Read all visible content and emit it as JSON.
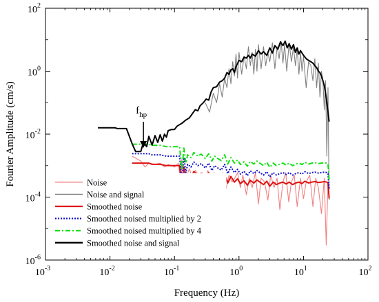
{
  "chart_data": {
    "type": "line",
    "xscale": "log",
    "yscale": "log",
    "xlim": [
      0.001,
      100
    ],
    "ylim": [
      1e-06,
      100
    ],
    "xlabel": "Frequency (Hz)",
    "ylabel": "Fourier Amplitude (cm/s)",
    "xticks": [
      {
        "value": 0.001,
        "base": "10",
        "exp": "-3"
      },
      {
        "value": 0.01,
        "base": "10",
        "exp": "-2"
      },
      {
        "value": 0.1,
        "base": "10",
        "exp": "-1"
      },
      {
        "value": 1,
        "base": "10",
        "exp": "0"
      },
      {
        "value": 10,
        "base": "10",
        "exp": "1"
      },
      {
        "value": 100,
        "base": "10",
        "exp": "2"
      }
    ],
    "yticks": [
      {
        "value": 1e-06,
        "base": "10",
        "exp": "-6"
      },
      {
        "value": 0.0001,
        "base": "10",
        "exp": "-4"
      },
      {
        "value": 0.01,
        "base": "10",
        "exp": "-2"
      },
      {
        "value": 1,
        "base": "10",
        "exp": "0"
      },
      {
        "value": 100,
        "base": "10",
        "exp": "2"
      }
    ],
    "legend_position": "bottom-left",
    "annotation": {
      "base": "f",
      "sub": "hp",
      "x": 0.033,
      "y": 0.0033
    },
    "series": [
      {
        "name": "Noise",
        "color": "#f08080",
        "style": "solid",
        "x": [
          0.022,
          0.03,
          0.035,
          0.04,
          0.05,
          0.06,
          0.07,
          0.08,
          0.09,
          0.1,
          0.115,
          0.125,
          0.13,
          0.14,
          0.15,
          0.17,
          0.19,
          0.21,
          0.24,
          0.27,
          0.3,
          0.33,
          0.37,
          0.41,
          0.45,
          0.5,
          0.56,
          0.62,
          0.7,
          0.78,
          0.86,
          0.95,
          1.05,
          1.15,
          1.3,
          1.45,
          1.6,
          1.8,
          2.0,
          2.2,
          2.5,
          2.8,
          3.1,
          3.5,
          3.9,
          4.3,
          4.8,
          5.3,
          5.9,
          6.5,
          7.2,
          8.0,
          9.0,
          10.0,
          11.0,
          12.5,
          14.0,
          15.5,
          17.0,
          19.0,
          21.0,
          22.5,
          24.0,
          25.0
        ],
        "values": [
          0.002,
          0.0014,
          0.0009,
          0.0012,
          0.0011,
          0.0012,
          0.0009,
          0.0011,
          0.001,
          0.0009,
          0.0012,
          0.0003,
          0.0016,
          0.0006,
          0.0004,
          0.0008,
          0.0004,
          0.0007,
          0.0005,
          0.0006,
          0.0004,
          0.0007,
          0.0003,
          0.0006,
          0.0005,
          0.0004,
          0.0006,
          0.00015,
          0.0005,
          0.0003,
          0.0004,
          0.0006,
          0.0002,
          0.0005,
          0.00012,
          0.0004,
          0.0002,
          0.0006,
          6e-05,
          0.0004,
          0.0003,
          8e-05,
          0.0005,
          0.0002,
          0.0004,
          4e-05,
          0.0003,
          0.0006,
          7e-05,
          0.0003,
          0.0005,
          5e-05,
          0.0004,
          9e-05,
          0.0003,
          0.0005,
          5e-05,
          0.0004,
          0.0002,
          3e-05,
          0.0004,
          3e-06,
          0.0003,
          0.0001
        ]
      },
      {
        "name": "Noise and signal",
        "color": "#808080",
        "style": "solid",
        "x": [
          0.3,
          0.35,
          0.4,
          0.45,
          0.5,
          0.55,
          0.6,
          0.65,
          0.7,
          0.75,
          0.8,
          0.85,
          0.9,
          0.95,
          1.0,
          1.1,
          1.2,
          1.3,
          1.4,
          1.5,
          1.6,
          1.7,
          1.8,
          1.9,
          2.0,
          2.2,
          2.4,
          2.6,
          2.8,
          3.0,
          3.3,
          3.6,
          3.9,
          4.2,
          4.5,
          4.8,
          5.1,
          5.5,
          6.0,
          6.5,
          7.0,
          7.5,
          8.0,
          8.5,
          9.0,
          9.5,
          10.0,
          11.0,
          12.0,
          13.0,
          14.0,
          15.0,
          16.0,
          17.0,
          18.0,
          19.0,
          20.0,
          21.0,
          22.0,
          23.0,
          24.0,
          25.0
        ],
        "values": [
          0.1,
          0.05,
          0.2,
          0.1,
          0.4,
          0.15,
          0.6,
          0.3,
          1.2,
          0.4,
          2.0,
          0.7,
          3.5,
          0.6,
          4.0,
          0.8,
          3.0,
          1.2,
          6.0,
          1.5,
          4.0,
          0.8,
          5.0,
          1.0,
          7.0,
          1.2,
          6.0,
          1.5,
          4.0,
          2.0,
          8.0,
          1.2,
          6.0,
          2.5,
          9.0,
          1.8,
          7.0,
          1.0,
          8.0,
          2.0,
          6.0,
          1.5,
          5.0,
          0.8,
          4.0,
          1.0,
          3.0,
          0.3,
          2.0,
          1.5,
          0.5,
          2.5,
          0.3,
          1.8,
          0.15,
          1.0,
          0.5,
          0.06,
          0.5,
          0.002,
          0.3,
          8e-05
        ]
      },
      {
        "name": "Smoothed noise",
        "color": "#e01010",
        "style": "solid",
        "x": [
          0.022,
          0.04,
          0.045,
          0.06,
          0.075,
          0.1,
          0.12,
          0.13,
          0.14,
          0.15,
          0.16,
          0.18,
          0.2,
          0.23,
          0.26,
          0.3,
          0.34,
          0.38,
          0.42,
          0.47,
          0.53,
          0.6,
          0.67,
          0.75,
          0.85,
          0.95,
          1.05,
          1.2,
          1.35,
          1.5,
          1.7,
          1.9,
          2.1,
          2.4,
          2.7,
          3.0,
          3.4,
          3.8,
          4.3,
          4.8,
          5.4,
          6.0,
          6.8,
          7.6,
          8.5,
          9.5,
          10.5,
          12.0,
          13.5,
          15.0,
          17.0,
          19.0,
          21.0,
          23.0,
          24.0,
          25.0
        ],
        "values": [
          0.0012,
          0.0012,
          0.0011,
          0.0011,
          0.001,
          0.001,
          0.001,
          0.00018,
          0.0009,
          0.0003,
          0.00055,
          0.00045,
          0.00065,
          0.0005,
          0.00058,
          0.00042,
          0.0006,
          0.00035,
          0.0005,
          0.00042,
          0.00036,
          0.00055,
          0.00028,
          0.00045,
          0.0003,
          0.00038,
          0.00027,
          0.00033,
          0.00024,
          0.00034,
          0.00028,
          0.00035,
          0.0003,
          0.00025,
          0.00032,
          0.00022,
          0.0003,
          0.00025,
          0.00028,
          0.0003,
          0.00026,
          0.0003,
          0.00025,
          0.00028,
          0.0003,
          0.00027,
          0.00032,
          0.00028,
          0.0003,
          0.00031,
          0.00029,
          0.0003,
          0.00031,
          0.0003,
          0.00028,
          9e-05
        ]
      },
      {
        "name": "Smoothed noised multiplied by 2",
        "color": "#1010d0",
        "style": "dotted",
        "x": [
          0.022,
          0.04,
          0.045,
          0.06,
          0.075,
          0.1,
          0.12,
          0.13,
          0.14,
          0.15,
          0.16,
          0.18,
          0.2,
          0.23,
          0.26,
          0.3,
          0.34,
          0.38,
          0.42,
          0.47,
          0.53,
          0.6,
          0.67,
          0.75,
          0.85,
          0.95,
          1.05,
          1.2,
          1.35,
          1.5,
          1.7,
          1.9,
          2.1,
          2.4,
          2.7,
          3.0,
          3.4,
          3.8,
          4.3,
          4.8,
          5.4,
          6.0,
          6.8,
          7.6,
          8.5,
          9.5,
          10.5,
          12.0,
          13.5,
          15.0,
          17.0,
          19.0,
          21.0,
          23.0,
          24.0,
          25.0
        ],
        "values": [
          0.0024,
          0.0024,
          0.0022,
          0.0022,
          0.002,
          0.002,
          0.002,
          0.00036,
          0.0018,
          0.0006,
          0.0011,
          0.0009,
          0.0013,
          0.001,
          0.00116,
          0.00084,
          0.0012,
          0.0007,
          0.001,
          0.00084,
          0.00072,
          0.0011,
          0.00056,
          0.0009,
          0.0006,
          0.00076,
          0.00054,
          0.00066,
          0.00048,
          0.00068,
          0.00056,
          0.0007,
          0.0006,
          0.0005,
          0.00064,
          0.00044,
          0.0006,
          0.0005,
          0.00056,
          0.0006,
          0.00052,
          0.0006,
          0.0005,
          0.00056,
          0.0006,
          0.00054,
          0.00064,
          0.00056,
          0.0006,
          0.00062,
          0.00058,
          0.0006,
          0.00062,
          0.0006,
          0.00056,
          0.00018
        ]
      },
      {
        "name": "Smoothed noised multiplied by 4",
        "color": "#10e010",
        "style": "dashdot",
        "x": [
          0.022,
          0.04,
          0.045,
          0.06,
          0.075,
          0.1,
          0.12,
          0.13,
          0.14,
          0.15,
          0.16,
          0.18,
          0.2,
          0.23,
          0.26,
          0.3,
          0.34,
          0.38,
          0.42,
          0.47,
          0.53,
          0.6,
          0.67,
          0.75,
          0.85,
          0.95,
          1.05,
          1.2,
          1.35,
          1.5,
          1.7,
          1.9,
          2.1,
          2.4,
          2.7,
          3.0,
          3.4,
          3.8,
          4.3,
          4.8,
          5.4,
          6.0,
          6.8,
          7.6,
          8.5,
          9.5,
          10.5,
          12.0,
          13.5,
          15.0,
          17.0,
          19.0,
          21.0,
          23.0,
          24.0,
          25.0
        ],
        "values": [
          0.0048,
          0.0048,
          0.0044,
          0.0044,
          0.004,
          0.004,
          0.004,
          0.00072,
          0.0036,
          0.0012,
          0.0022,
          0.0018,
          0.0026,
          0.002,
          0.00232,
          0.00168,
          0.0024,
          0.0014,
          0.002,
          0.00168,
          0.00144,
          0.0022,
          0.00112,
          0.0018,
          0.0012,
          0.00152,
          0.00108,
          0.00132,
          0.00096,
          0.00136,
          0.00112,
          0.0014,
          0.0012,
          0.001,
          0.00128,
          0.00088,
          0.0012,
          0.001,
          0.00112,
          0.0012,
          0.00104,
          0.0012,
          0.001,
          0.00112,
          0.0012,
          0.00108,
          0.00128,
          0.00112,
          0.0012,
          0.00124,
          0.00116,
          0.0012,
          0.00124,
          0.0012,
          0.00112,
          0.00036
        ]
      },
      {
        "name": "Smoothed noise and signal",
        "color": "#000000",
        "style": "solid",
        "x": [
          0.0065,
          0.012,
          0.013,
          0.018,
          0.022,
          0.025,
          0.03,
          0.033,
          0.037,
          0.04,
          0.045,
          0.05,
          0.055,
          0.06,
          0.065,
          0.07,
          0.075,
          0.08,
          0.09,
          0.1,
          0.11,
          0.12,
          0.13,
          0.14,
          0.15,
          0.17,
          0.19,
          0.21,
          0.23,
          0.25,
          0.28,
          0.31,
          0.34,
          0.37,
          0.4,
          0.45,
          0.5,
          0.55,
          0.6,
          0.65,
          0.7,
          0.75,
          0.8,
          0.85,
          0.9,
          1.0,
          1.1,
          1.2,
          1.3,
          1.4,
          1.5,
          1.6,
          1.8,
          2.0,
          2.2,
          2.4,
          2.7,
          3.0,
          3.3,
          3.6,
          4.0,
          4.4,
          4.8,
          5.2,
          5.6,
          6.0,
          6.5,
          7.0,
          7.5,
          8.0,
          8.5,
          9.0,
          10.0,
          11.0,
          12.0,
          13.0,
          14.0,
          15.0,
          16.0,
          17.0,
          18.0,
          19.0,
          20.0,
          21.0,
          22.0,
          23.0,
          24.0,
          25.0
        ],
        "values": [
          0.016,
          0.016,
          0.015,
          0.015,
          0.005,
          0.0028,
          0.0028,
          0.0055,
          0.004,
          0.0085,
          0.0045,
          0.009,
          0.0055,
          0.0095,
          0.006,
          0.01,
          0.008,
          0.013,
          0.014,
          0.014,
          0.018,
          0.02,
          0.022,
          0.025,
          0.028,
          0.033,
          0.045,
          0.06,
          0.055,
          0.08,
          0.1,
          0.13,
          0.12,
          0.22,
          0.3,
          0.32,
          0.45,
          0.5,
          0.6,
          0.9,
          0.8,
          1.1,
          1.2,
          0.9,
          1.4,
          2.2,
          2.0,
          2.8,
          2.6,
          3.2,
          2.6,
          3.5,
          3.0,
          4.5,
          3.5,
          4.2,
          3.2,
          5.5,
          3.8,
          6.5,
          5.0,
          8.5,
          6.5,
          9.0,
          5.5,
          7.5,
          5.0,
          7.0,
          4.0,
          5.5,
          3.5,
          4.5,
          3.2,
          2.5,
          2.2,
          2.0,
          1.8,
          1.5,
          1.3,
          1.0,
          0.9,
          0.7,
          0.5,
          0.35,
          0.2,
          0.1,
          0.05,
          0.025
        ]
      }
    ]
  }
}
